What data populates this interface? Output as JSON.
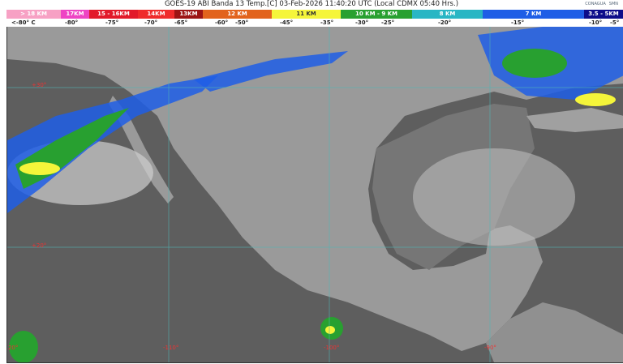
{
  "title": "GOES-19 ABI Banda 13 Temp.[C] 03-Feb-2026 11:40:20 UTC (Local CDMX  05:40 Hrs.)",
  "logos": [
    "CONAGUA",
    "SMN"
  ],
  "legend": [
    {
      "label": "> 18 KM",
      "color": "#f7a1c4",
      "flex": 67
    },
    {
      "label": "17KM",
      "color": "#ee44c4",
      "flex": 35
    },
    {
      "label": "15 - 16KM",
      "color": "#e21a2a",
      "flex": 60
    },
    {
      "label": "14KM",
      "color": "#ef2b2b",
      "flex": 45
    },
    {
      "label": "13KM",
      "color": "#9c1414",
      "flex": 35
    },
    {
      "label": "12 KM",
      "color": "#e2631c",
      "flex": 85
    },
    {
      "label": "11 KM",
      "color": "#f5f53a",
      "flex": 85
    },
    {
      "label": "10 KM - 9 KM",
      "color": "#28a030",
      "flex": 88
    },
    {
      "label": "8 KM",
      "color": "#29b6c4",
      "flex": 87
    },
    {
      "label": "7 KM",
      "color": "#1f5ee6",
      "flex": 125
    },
    {
      "label": "3.5 - 5KM",
      "color": "#0d0d8a",
      "flex": 48
    }
  ],
  "temps": [
    "<-80° C",
    "-80°",
    "-75°",
    "-70°",
    "-65°",
    "-60°",
    "-50°",
    "-45°",
    "-35°",
    "-30°",
    "-25°",
    "-20°",
    "-15°",
    "-10°",
    "-5° C"
  ],
  "grid_labels": {
    "lat": [
      "+30°",
      "+20°"
    ],
    "lon": [
      "-120°",
      "-110°",
      "-100°",
      "-90°"
    ]
  }
}
